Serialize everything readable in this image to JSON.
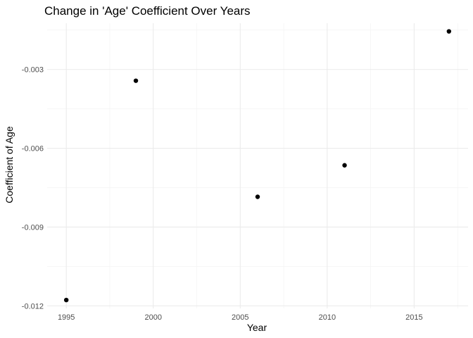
{
  "chart_data": {
    "type": "scatter",
    "title": "Change in 'Age' Coefficient Over Years",
    "xlabel": "Year",
    "ylabel": "Coefficient of Age",
    "x": [
      1995,
      1999,
      2006,
      2011,
      2017
    ],
    "y": [
      -0.01178,
      -0.00343,
      -0.00785,
      -0.00665,
      -0.00155
    ],
    "xlim": [
      1993.9,
      2018.1
    ],
    "ylim": [
      -0.0121,
      -0.00124
    ],
    "x_ticks": [
      1995,
      2000,
      2005,
      2010,
      2015
    ],
    "x_tick_labels": [
      "1995",
      "2000",
      "2005",
      "2010",
      "2015"
    ],
    "y_ticks": [
      -0.012,
      -0.009,
      -0.006,
      -0.003
    ],
    "y_tick_labels": [
      "-0.012",
      "-0.009",
      "-0.006",
      "-0.003"
    ],
    "grid": true,
    "legend": "none",
    "colors": {
      "point": "#000000",
      "grid_major": "#ebebeb",
      "grid_minor": "#f2f2f2"
    }
  }
}
